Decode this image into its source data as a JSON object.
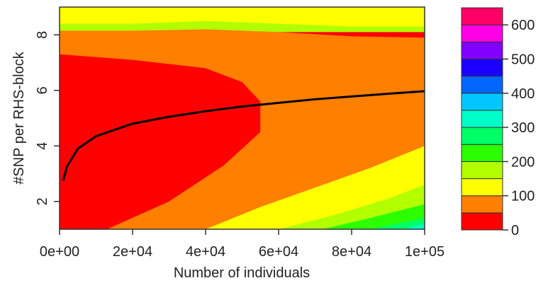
{
  "chart_data": {
    "type": "heatmap",
    "subtype": "filled-contour",
    "title": "",
    "xlabel": "Number of individuals",
    "ylabel": "#SNP per RHS-block",
    "xlim": [
      0,
      100000
    ],
    "ylim": [
      1,
      9
    ],
    "x_ticks": [
      0,
      20000,
      40000,
      60000,
      80000,
      100000
    ],
    "x_tick_labels": [
      "0e+00",
      "2e+04",
      "4e+04",
      "6e+04",
      "8e+04",
      "1e+05"
    ],
    "y_ticks": [
      2,
      4,
      6,
      8
    ],
    "y_tick_labels": [
      "2",
      "4",
      "6",
      "8"
    ],
    "grid": false,
    "colorbar": {
      "levels": [
        0,
        50,
        100,
        150,
        200,
        250,
        300,
        350,
        400,
        450,
        500,
        550,
        600,
        650
      ],
      "colors": [
        "#ff0000",
        "#ff7f00",
        "#ffff00",
        "#b2ff00",
        "#2bff00",
        "#00ff66",
        "#00ffc8",
        "#00c8ff",
        "#0066ff",
        "#1a00ff",
        "#8000ff",
        "#ff00e6",
        "#ff0066"
      ],
      "tick_values": [
        0,
        100,
        200,
        300,
        400,
        500,
        600
      ],
      "tick_labels": [
        "0",
        "100",
        "200",
        "300",
        "400",
        "500",
        "600"
      ]
    },
    "contour_boundaries": [
      {
        "level": 50,
        "x": [
          0,
          20000,
          40000,
          50000,
          55000,
          55000,
          70000,
          100000
        ],
        "y": [
          7.3,
          7.1,
          6.8,
          6.3,
          5.6,
          5.6,
          8.0,
          8.0
        ]
      },
      {
        "level": 100,
        "x": [
          0,
          20000,
          40000,
          60000,
          80000,
          100000
        ],
        "y": [
          8.15,
          8.15,
          8.2,
          8.1,
          7.95,
          7.9
        ]
      },
      {
        "level": 150,
        "x": [
          0,
          20000,
          40000,
          60000,
          80000,
          100000
        ],
        "y": [
          8.4,
          8.4,
          8.5,
          8.4,
          8.3,
          8.3
        ]
      }
    ],
    "lower_boundaries": [
      {
        "level": 50,
        "x": [
          13000,
          30000,
          45000,
          55000,
          55000
        ],
        "y": [
          1.0,
          2.0,
          3.3,
          4.5,
          5.6
        ]
      },
      {
        "level": 100,
        "x": [
          40000,
          55000,
          70000,
          85000,
          100000
        ],
        "y": [
          1.0,
          1.8,
          2.5,
          3.2,
          4.0
        ]
      },
      {
        "level": 150,
        "x": [
          60000,
          75000,
          90000,
          100000
        ],
        "y": [
          1.0,
          1.5,
          2.1,
          2.6
        ]
      },
      {
        "level": 200,
        "x": [
          72000,
          85000,
          100000
        ],
        "y": [
          1.0,
          1.4,
          1.9
        ]
      },
      {
        "level": 250,
        "x": [
          85000,
          100000
        ],
        "y": [
          1.0,
          1.4
        ]
      },
      {
        "level": 300,
        "x": [
          94000,
          100000
        ],
        "y": [
          1.0,
          1.2
        ]
      }
    ],
    "series": [
      {
        "type": "line",
        "color": "#000000",
        "x": [
          1000,
          2000,
          5000,
          10000,
          20000,
          30000,
          40000,
          50000,
          60000,
          70000,
          80000,
          90000,
          100000
        ],
        "y": [
          2.75,
          3.25,
          3.9,
          4.35,
          4.8,
          5.05,
          5.25,
          5.42,
          5.55,
          5.68,
          5.78,
          5.88,
          5.97
        ]
      }
    ]
  }
}
